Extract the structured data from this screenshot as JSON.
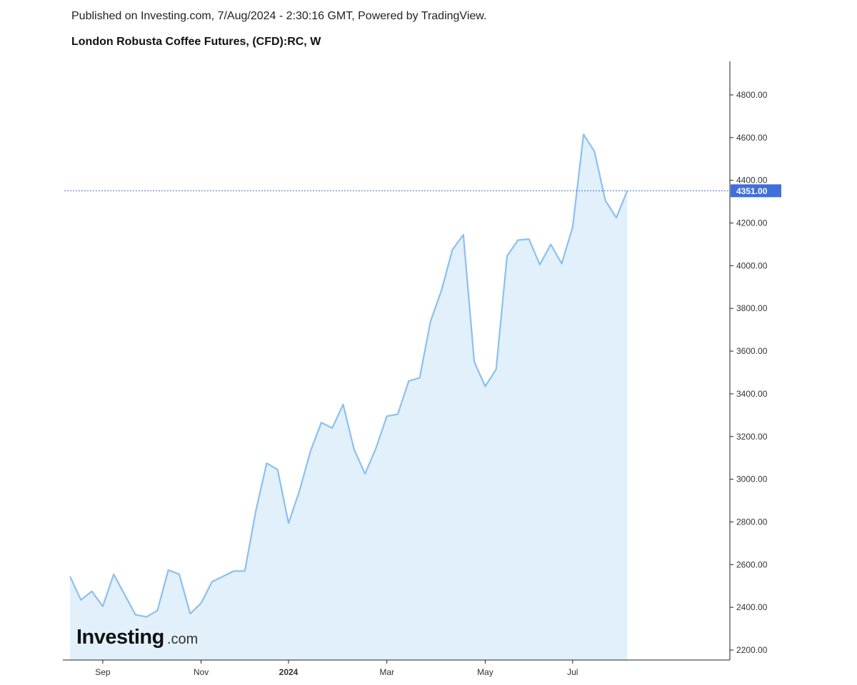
{
  "header": {
    "publish_line": "Published on Investing.com, 7/Aug/2024 - 2:30:16 GMT, Powered by TradingView.",
    "instrument_title": "London Robusta Coffee Futures, (CFD):RC, W"
  },
  "logo": {
    "main": "Investing",
    "suffix": ".com"
  },
  "colors": {
    "line": "#8cc0ee",
    "area": "#e1f0fa",
    "current_line": "#3b6fd6",
    "badge": "#3f6fd8",
    "axis": "#222222"
  },
  "chart_data": {
    "type": "area",
    "title": "London Robusta Coffee Futures, (CFD):RC, W",
    "xlabel": "",
    "ylabel": "",
    "ylim": [
      2170,
      4960
    ],
    "x_tick_labels": [
      {
        "label": "Sep",
        "index": 3,
        "bold": false
      },
      {
        "label": "Nov",
        "index": 12,
        "bold": false
      },
      {
        "label": "2024",
        "index": 20,
        "bold": true
      },
      {
        "label": "Mar",
        "index": 29,
        "bold": false
      },
      {
        "label": "May",
        "index": 38,
        "bold": false
      },
      {
        "label": "Jul",
        "index": 46,
        "bold": false
      }
    ],
    "y_tick_labels": [
      "2200.00",
      "2400.00",
      "2600.00",
      "2800.00",
      "3000.00",
      "3200.00",
      "3400.00",
      "3600.00",
      "3800.00",
      "4000.00",
      "4200.00",
      "4400.00",
      "4600.00",
      "4800.00"
    ],
    "y_tick_values": [
      2200,
      2400,
      2600,
      2800,
      3000,
      3200,
      3400,
      3600,
      3800,
      4000,
      4200,
      4400,
      4600,
      4800
    ],
    "current_value": 4351,
    "current_value_label": "4351.00",
    "grid": false,
    "series": [
      {
        "values": [
          2545,
          2435,
          2475,
          2405,
          2555,
          2460,
          2365,
          2355,
          2385,
          2575,
          2555,
          2370,
          2420,
          2520,
          2545,
          2570,
          2570,
          2850,
          3075,
          3045,
          2795,
          2945,
          3130,
          3265,
          3240,
          3350,
          3140,
          3025,
          3145,
          3295,
          3305,
          3460,
          3475,
          3740,
          3885,
          4075,
          4145,
          3550,
          3435,
          3515,
          4045,
          4120,
          4125,
          4005,
          4100,
          4010,
          4180,
          4615,
          4535,
          4305,
          4225,
          4351
        ]
      }
    ]
  }
}
